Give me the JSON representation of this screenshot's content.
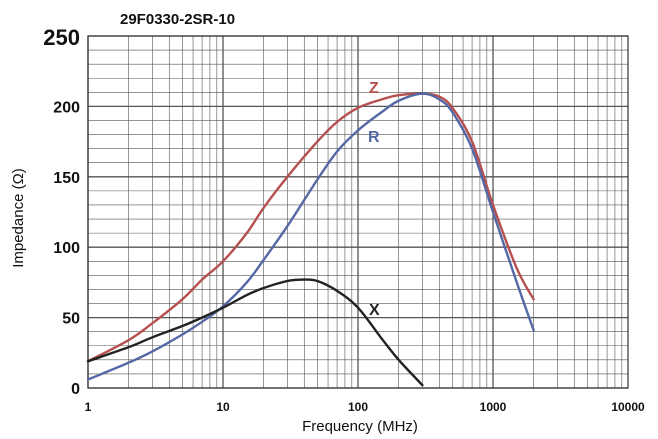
{
  "chart_data": {
    "type": "line",
    "title": "29F0330-2SR-10",
    "xlabel": "Frequency (MHz)",
    "ylabel": "Impedance (Ω)",
    "x_scale": "log",
    "xlim": [
      1,
      10000
    ],
    "ylim": [
      0,
      250
    ],
    "grid": true,
    "x_tick_labels": [
      "1",
      "10",
      "100",
      "1000",
      "10000"
    ],
    "x_tick_values": [
      1,
      10,
      100,
      1000,
      10000
    ],
    "y_tick_labels": [
      "0",
      "50",
      "100",
      "150",
      "200",
      "250"
    ],
    "y_tick_values": [
      0,
      50,
      100,
      150,
      200,
      250
    ],
    "colors": {
      "Z": "#b5504f",
      "R": "#5468a6",
      "X": "#222222",
      "grid": "#555555"
    },
    "series": [
      {
        "name": "Z",
        "x": [
          1,
          2,
          3,
          5,
          7,
          10,
          15,
          20,
          30,
          50,
          70,
          100,
          150,
          200,
          300,
          400,
          500,
          700,
          1000,
          1500,
          2000
        ],
        "y": [
          19,
          34,
          46,
          63,
          77,
          90,
          110,
          128,
          150,
          175,
          189,
          199,
          205,
          208,
          209,
          207,
          199,
          175,
          130,
          85,
          63
        ]
      },
      {
        "name": "R",
        "x": [
          1,
          2,
          3,
          5,
          7,
          10,
          15,
          20,
          30,
          50,
          70,
          100,
          150,
          200,
          300,
          400,
          500,
          700,
          1000,
          1500,
          2000
        ],
        "y": [
          6,
          18,
          26,
          38,
          47,
          58,
          75,
          91,
          115,
          148,
          168,
          183,
          196,
          204,
          209,
          205,
          196,
          170,
          125,
          75,
          41
        ]
      },
      {
        "name": "X",
        "x": [
          1,
          2,
          3,
          5,
          7,
          10,
          15,
          20,
          30,
          40,
          50,
          70,
          100,
          150,
          200,
          300
        ],
        "y": [
          19,
          29,
          36,
          44,
          50,
          57,
          66,
          71,
          76,
          77,
          76,
          69,
          57,
          35,
          20,
          2
        ]
      }
    ]
  }
}
